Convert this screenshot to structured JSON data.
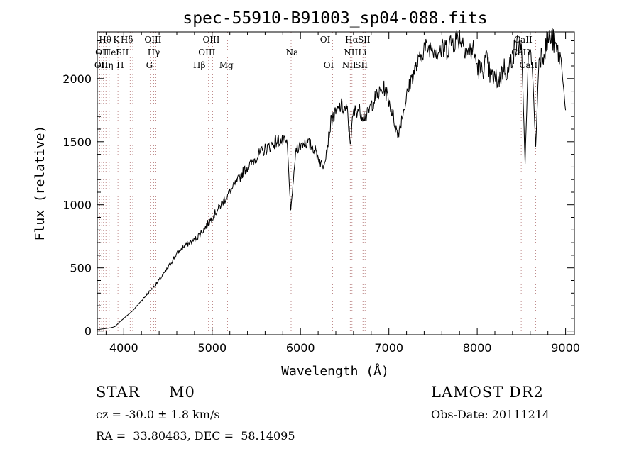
{
  "chart_data": {
    "type": "line",
    "title": "spec-55910-B91003_sp04-088.fits",
    "xlabel": "Wavelength (Å)",
    "ylabel": "Flux (relative)",
    "xlim": [
      3700,
      9100
    ],
    "ylim": [
      -30,
      2370
    ],
    "xticks": [
      4000,
      5000,
      6000,
      7000,
      8000,
      9000
    ],
    "yticks": [
      0,
      500,
      1000,
      1500,
      2000
    ],
    "grid": false,
    "line_color": "#000000",
    "series": [
      {
        "x": [
          3700,
          3750,
          3800,
          3850,
          3900,
          3950,
          4000,
          4050,
          4100,
          4150,
          4200,
          4250,
          4300,
          4350,
          4400,
          4450,
          4500,
          4550,
          4600,
          4650,
          4700,
          4750,
          4800,
          4850,
          4900,
          4950,
          5000,
          5050,
          5100,
          5150,
          5200,
          5250,
          5300,
          5350,
          5400,
          5450,
          5500,
          5550,
          5600,
          5650,
          5700,
          5750,
          5800,
          5850,
          5890,
          5950,
          6000,
          6050,
          6100,
          6150,
          6200,
          6250,
          6300,
          6350,
          6400,
          6450,
          6500,
          6530,
          6563,
          6600,
          6650,
          6700,
          6750,
          6800,
          6850,
          6900,
          6950,
          7000,
          7050,
          7100,
          7150,
          7200,
          7250,
          7300,
          7350,
          7400,
          7450,
          7500,
          7550,
          7600,
          7650,
          7700,
          7750,
          7800,
          7850,
          7900,
          7950,
          8000,
          8050,
          8100,
          8150,
          8200,
          8250,
          8300,
          8350,
          8400,
          8450,
          8500,
          8542,
          8580,
          8620,
          8662,
          8700,
          8750,
          8800,
          8850,
          8900,
          8950,
          9000
        ],
        "y": [
          10,
          15,
          20,
          25,
          35,
          70,
          100,
          130,
          160,
          200,
          240,
          280,
          320,
          360,
          400,
          450,
          500,
          560,
          610,
          650,
          680,
          700,
          720,
          760,
          800,
          850,
          900,
          950,
          1000,
          1050,
          1100,
          1150,
          1200,
          1260,
          1300,
          1330,
          1380,
          1410,
          1440,
          1460,
          1490,
          1510,
          1500,
          1480,
          950,
          1450,
          1470,
          1500,
          1480,
          1450,
          1380,
          1300,
          1450,
          1680,
          1720,
          1780,
          1760,
          1740,
          1500,
          1730,
          1760,
          1720,
          1700,
          1790,
          1850,
          1890,
          1920,
          1830,
          1700,
          1550,
          1700,
          1850,
          1990,
          2080,
          2150,
          2250,
          2240,
          2260,
          2230,
          2220,
          2240,
          2280,
          2310,
          2330,
          2280,
          2200,
          2240,
          2100,
          2050,
          2150,
          2020,
          2000,
          1990,
          2090,
          2050,
          2190,
          2260,
          2290,
          1330,
          2190,
          2150,
          1460,
          2170,
          2210,
          2310,
          2320,
          2220,
          2150,
          1750
        ]
      }
    ],
    "lines": [
      {
        "x": 3727,
        "labels": [
          "OII",
          "OII"
        ]
      },
      {
        "x": 3750,
        "labels": [
          "Hθ"
        ]
      },
      {
        "x": 3771,
        "labels": [
          "Hη"
        ]
      },
      {
        "x": 3798,
        "labels": [
          "Hη"
        ]
      },
      {
        "x": 3835,
        "labels": [
          "Hη"
        ]
      },
      {
        "x": 3889,
        "labels": [
          "HeI",
          "Hη"
        ]
      },
      {
        "x": 3934,
        "labels": [
          "K"
        ]
      },
      {
        "x": 3969,
        "labels": [
          "H"
        ]
      },
      {
        "x": 4072,
        "labels": [
          "SII"
        ]
      },
      {
        "x": 4102,
        "labels": [
          "Hδ"
        ]
      },
      {
        "x": 4300,
        "labels": [
          "G"
        ]
      },
      {
        "x": 4340,
        "labels": [
          "Hγ"
        ]
      },
      {
        "x": 4363,
        "labels": [
          "OIII"
        ]
      },
      {
        "x": 4861,
        "labels": [
          "Hβ"
        ]
      },
      {
        "x": 4959,
        "labels": [
          "OIII"
        ]
      },
      {
        "x": 5007,
        "labels": [
          "OIII"
        ]
      },
      {
        "x": 5175,
        "labels": [
          "Mg"
        ]
      },
      {
        "x": 5894,
        "labels": [
          "Na"
        ]
      },
      {
        "x": 6300,
        "labels": [
          "OI"
        ]
      },
      {
        "x": 6364,
        "labels": [
          "OI"
        ]
      },
      {
        "x": 6548,
        "labels": [
          "NII"
        ]
      },
      {
        "x": 6563,
        "labels": [
          "Hα"
        ]
      },
      {
        "x": 6583,
        "labels": [
          "NII"
        ]
      },
      {
        "x": 6707,
        "labels": [
          "Li"
        ]
      },
      {
        "x": 6716,
        "labels": [
          "SII"
        ]
      },
      {
        "x": 6731,
        "labels": [
          "SII"
        ]
      },
      {
        "x": 8498,
        "labels": [
          "CaII"
        ]
      },
      {
        "x": 8542,
        "labels": [
          "CaII"
        ]
      },
      {
        "x": 8662,
        "labels": [
          "CaII"
        ]
      }
    ],
    "label_rows": [
      {
        "row": 0,
        "items": [
          {
            "x": 3790,
            "text": "Hθ"
          },
          {
            "x": 3915,
            "text": "K"
          },
          {
            "x": 4035,
            "text": "Hδ"
          },
          {
            "x": 4330,
            "text": "OIII"
          },
          {
            "x": 4990,
            "text": "OIII"
          },
          {
            "x": 6280,
            "text": "OI"
          },
          {
            "x": 6580,
            "text": "Hα"
          },
          {
            "x": 6720,
            "text": "SII"
          },
          {
            "x": 8520,
            "text": "CaII"
          }
        ]
      },
      {
        "row": 1,
        "items": [
          {
            "x": 3755,
            "text": "OII"
          },
          {
            "x": 3860,
            "text": "HeI"
          },
          {
            "x": 3985,
            "text": "SII"
          },
          {
            "x": 4340,
            "text": "Hγ"
          },
          {
            "x": 4940,
            "text": "OIII"
          },
          {
            "x": 5905,
            "text": "Na"
          },
          {
            "x": 6570,
            "text": "NII"
          },
          {
            "x": 6700,
            "text": "Li"
          },
          {
            "x": 8490,
            "text": "CaII"
          }
        ]
      },
      {
        "row": 2,
        "items": [
          {
            "x": 3745,
            "text": "OII"
          },
          {
            "x": 3810,
            "text": "Hη"
          },
          {
            "x": 3960,
            "text": "H"
          },
          {
            "x": 4290,
            "text": "G"
          },
          {
            "x": 4855,
            "text": "Hβ"
          },
          {
            "x": 5160,
            "text": "Mg"
          },
          {
            "x": 6320,
            "text": "OI"
          },
          {
            "x": 6550,
            "text": "NII"
          },
          {
            "x": 6690,
            "text": "SII"
          },
          {
            "x": 8580,
            "text": "CaII"
          }
        ]
      }
    ]
  },
  "info": {
    "object_class": "STAR",
    "subclass": "M0",
    "survey": "LAMOST DR2",
    "redshift": "cz = -30.0 ± 1.8 km/s",
    "obs_date": "Obs-Date: 20111214",
    "coords": "RA =  33.80483, DEC =  58.14095"
  }
}
